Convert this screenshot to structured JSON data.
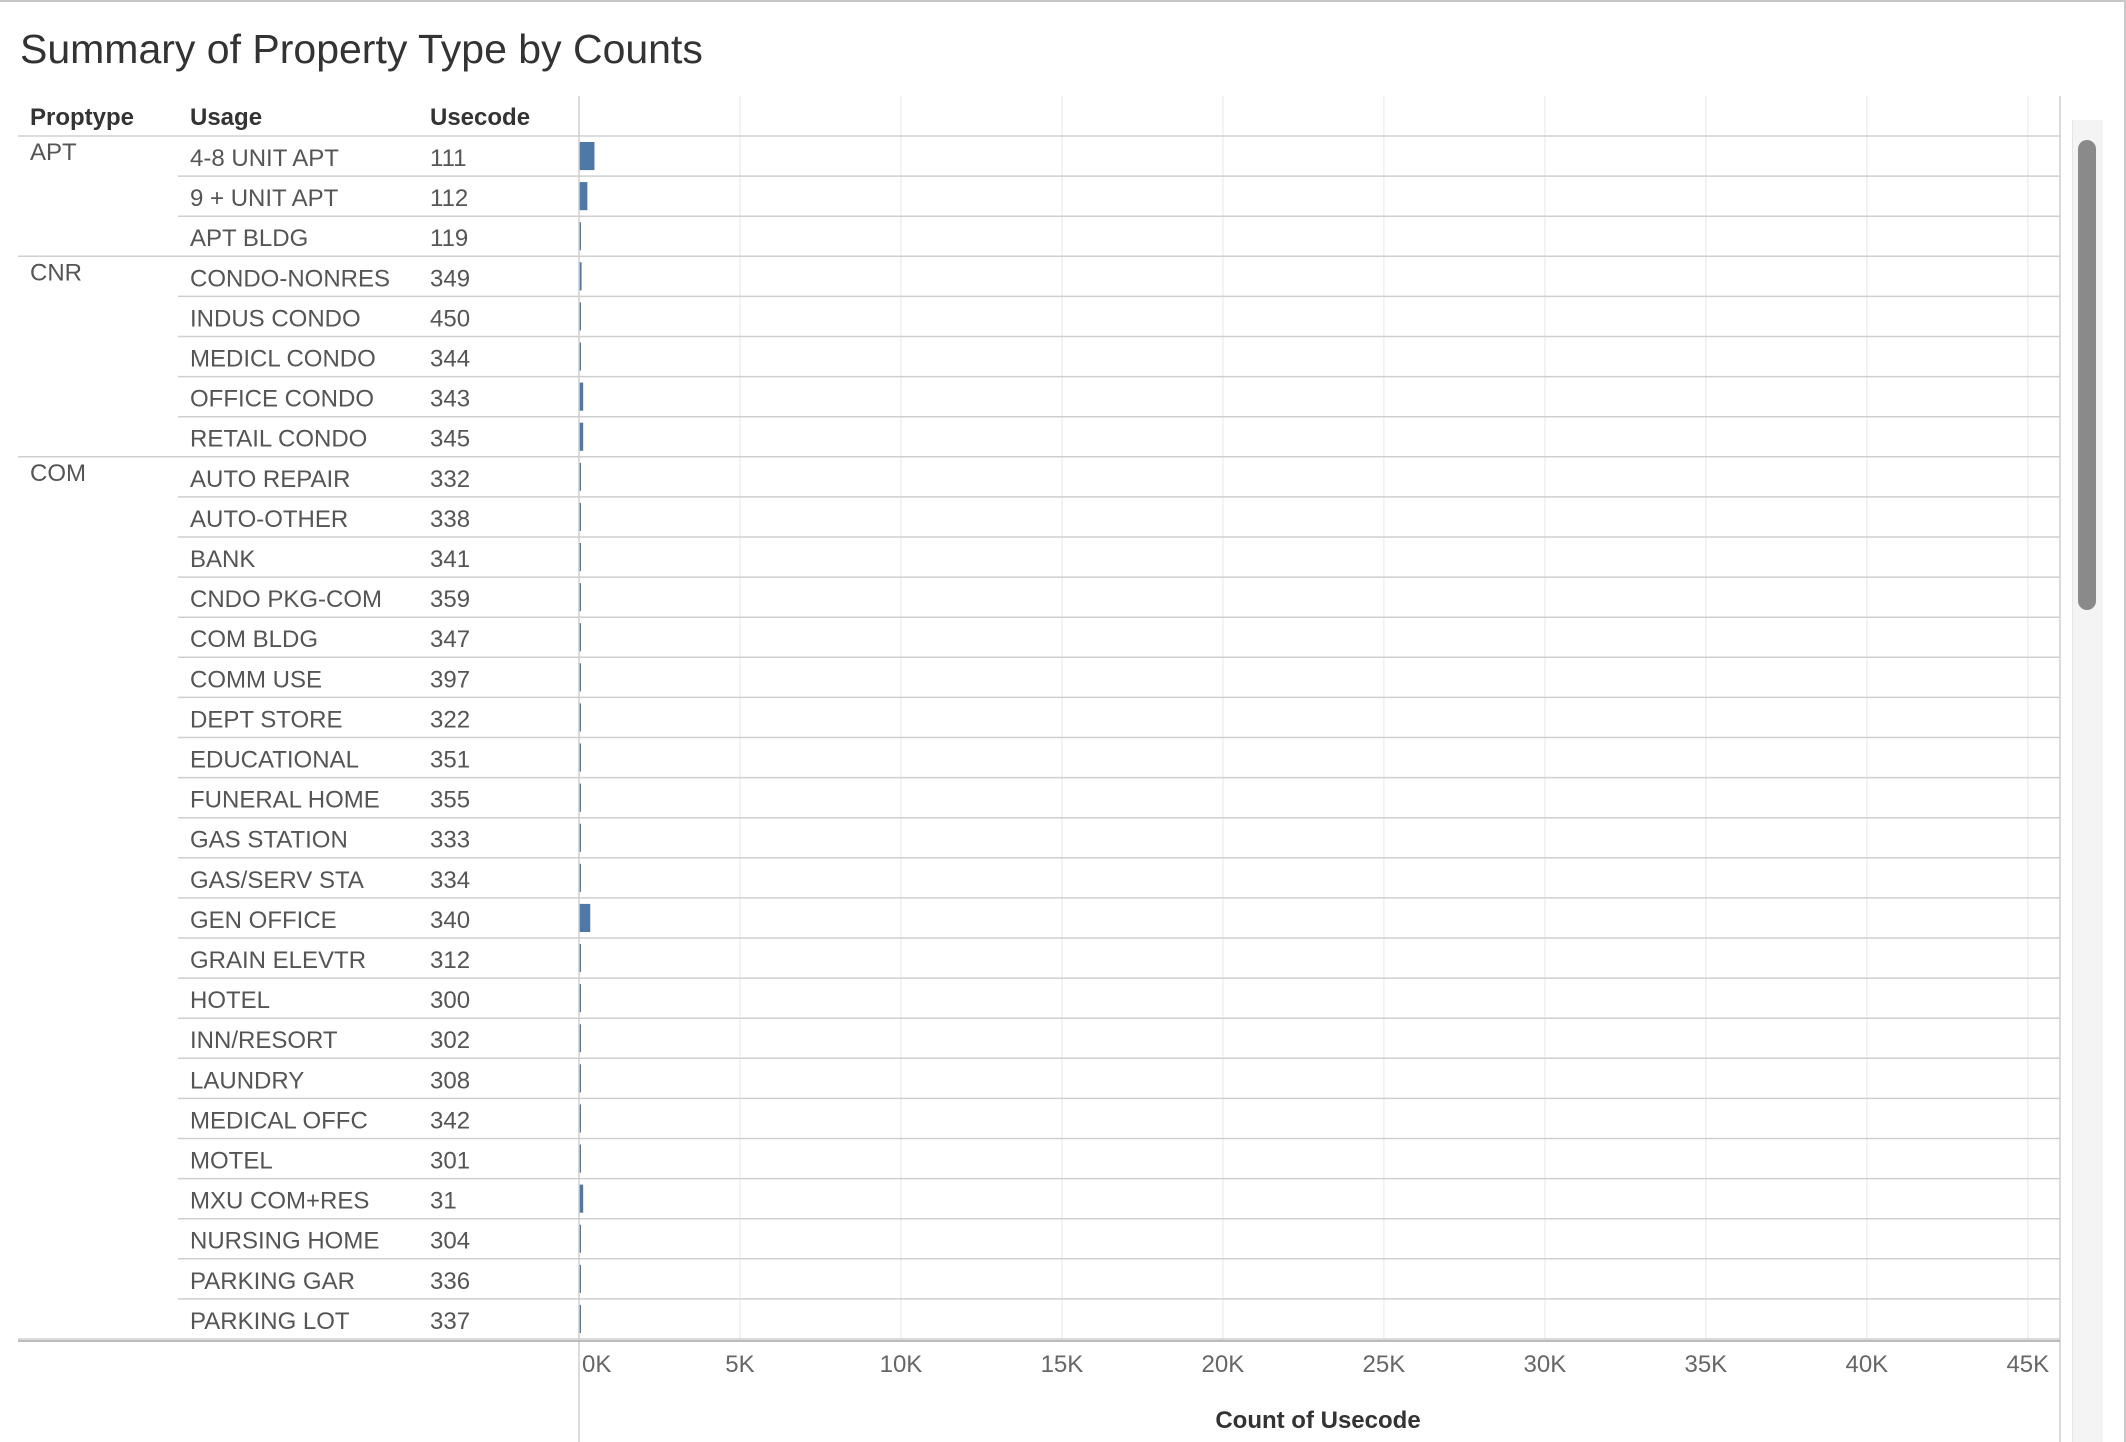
{
  "chart_data": {
    "type": "bar",
    "orientation": "horizontal",
    "title": "Summary of Property Type by Counts",
    "columns": [
      "Proptype",
      "Usage",
      "Usecode"
    ],
    "xlabel": "Count of Usecode",
    "xlim": [
      0,
      46000
    ],
    "x_ticks": [
      "0K",
      "5K",
      "10K",
      "15K",
      "20K",
      "25K",
      "30K",
      "35K",
      "40K",
      "45K"
    ],
    "x_tick_values": [
      0,
      5000,
      10000,
      15000,
      20000,
      25000,
      30000,
      35000,
      40000,
      45000
    ],
    "grid": true,
    "bar_color": "#4e79a7",
    "rows": [
      {
        "proptype": "APT",
        "usage": "4-8 UNIT APT",
        "usecode": "111",
        "value": 480
      },
      {
        "proptype": "",
        "usage": "9 + UNIT APT",
        "usecode": "112",
        "value": 260
      },
      {
        "proptype": "",
        "usage": "APT BLDG",
        "usecode": "119",
        "value": 30
      },
      {
        "proptype": "CNR",
        "usage": "CONDO-NONRES",
        "usecode": "349",
        "value": 80
      },
      {
        "proptype": "",
        "usage": "INDUS CONDO",
        "usecode": "450",
        "value": 30
      },
      {
        "proptype": "",
        "usage": "MEDICL CONDO",
        "usecode": "344",
        "value": 30
      },
      {
        "proptype": "",
        "usage": "OFFICE CONDO",
        "usecode": "343",
        "value": 130
      },
      {
        "proptype": "",
        "usage": "RETAIL CONDO",
        "usecode": "345",
        "value": 130
      },
      {
        "proptype": "COM",
        "usage": "AUTO REPAIR",
        "usecode": "332",
        "value": 30
      },
      {
        "proptype": "",
        "usage": "AUTO-OTHER",
        "usecode": "338",
        "value": 30
      },
      {
        "proptype": "",
        "usage": "BANK",
        "usecode": "341",
        "value": 30
      },
      {
        "proptype": "",
        "usage": "CNDO PKG-COM",
        "usecode": "359",
        "value": 30
      },
      {
        "proptype": "",
        "usage": "COM BLDG",
        "usecode": "347",
        "value": 30
      },
      {
        "proptype": "",
        "usage": "COMM USE",
        "usecode": "397",
        "value": 30
      },
      {
        "proptype": "",
        "usage": "DEPT STORE",
        "usecode": "322",
        "value": 30
      },
      {
        "proptype": "",
        "usage": "EDUCATIONAL",
        "usecode": "351",
        "value": 30
      },
      {
        "proptype": "",
        "usage": "FUNERAL HOME",
        "usecode": "355",
        "value": 30
      },
      {
        "proptype": "",
        "usage": "GAS STATION",
        "usecode": "333",
        "value": 30
      },
      {
        "proptype": "",
        "usage": "GAS/SERV STA",
        "usecode": "334",
        "value": 30
      },
      {
        "proptype": "",
        "usage": "GEN OFFICE",
        "usecode": "340",
        "value": 350
      },
      {
        "proptype": "",
        "usage": "GRAIN ELEVTR",
        "usecode": "312",
        "value": 30
      },
      {
        "proptype": "",
        "usage": "HOTEL",
        "usecode": "300",
        "value": 30
      },
      {
        "proptype": "",
        "usage": "INN/RESORT",
        "usecode": "302",
        "value": 30
      },
      {
        "proptype": "",
        "usage": "LAUNDRY",
        "usecode": "308",
        "value": 30
      },
      {
        "proptype": "",
        "usage": "MEDICAL OFFC",
        "usecode": "342",
        "value": 30
      },
      {
        "proptype": "",
        "usage": "MOTEL",
        "usecode": "301",
        "value": 30
      },
      {
        "proptype": "",
        "usage": "MXU COM+RES",
        "usecode": "31",
        "value": 130
      },
      {
        "proptype": "",
        "usage": "NURSING HOME",
        "usecode": "304",
        "value": 30
      },
      {
        "proptype": "",
        "usage": "PARKING GAR",
        "usecode": "336",
        "value": 30
      },
      {
        "proptype": "",
        "usage": "PARKING LOT",
        "usecode": "337",
        "value": 30
      }
    ]
  }
}
